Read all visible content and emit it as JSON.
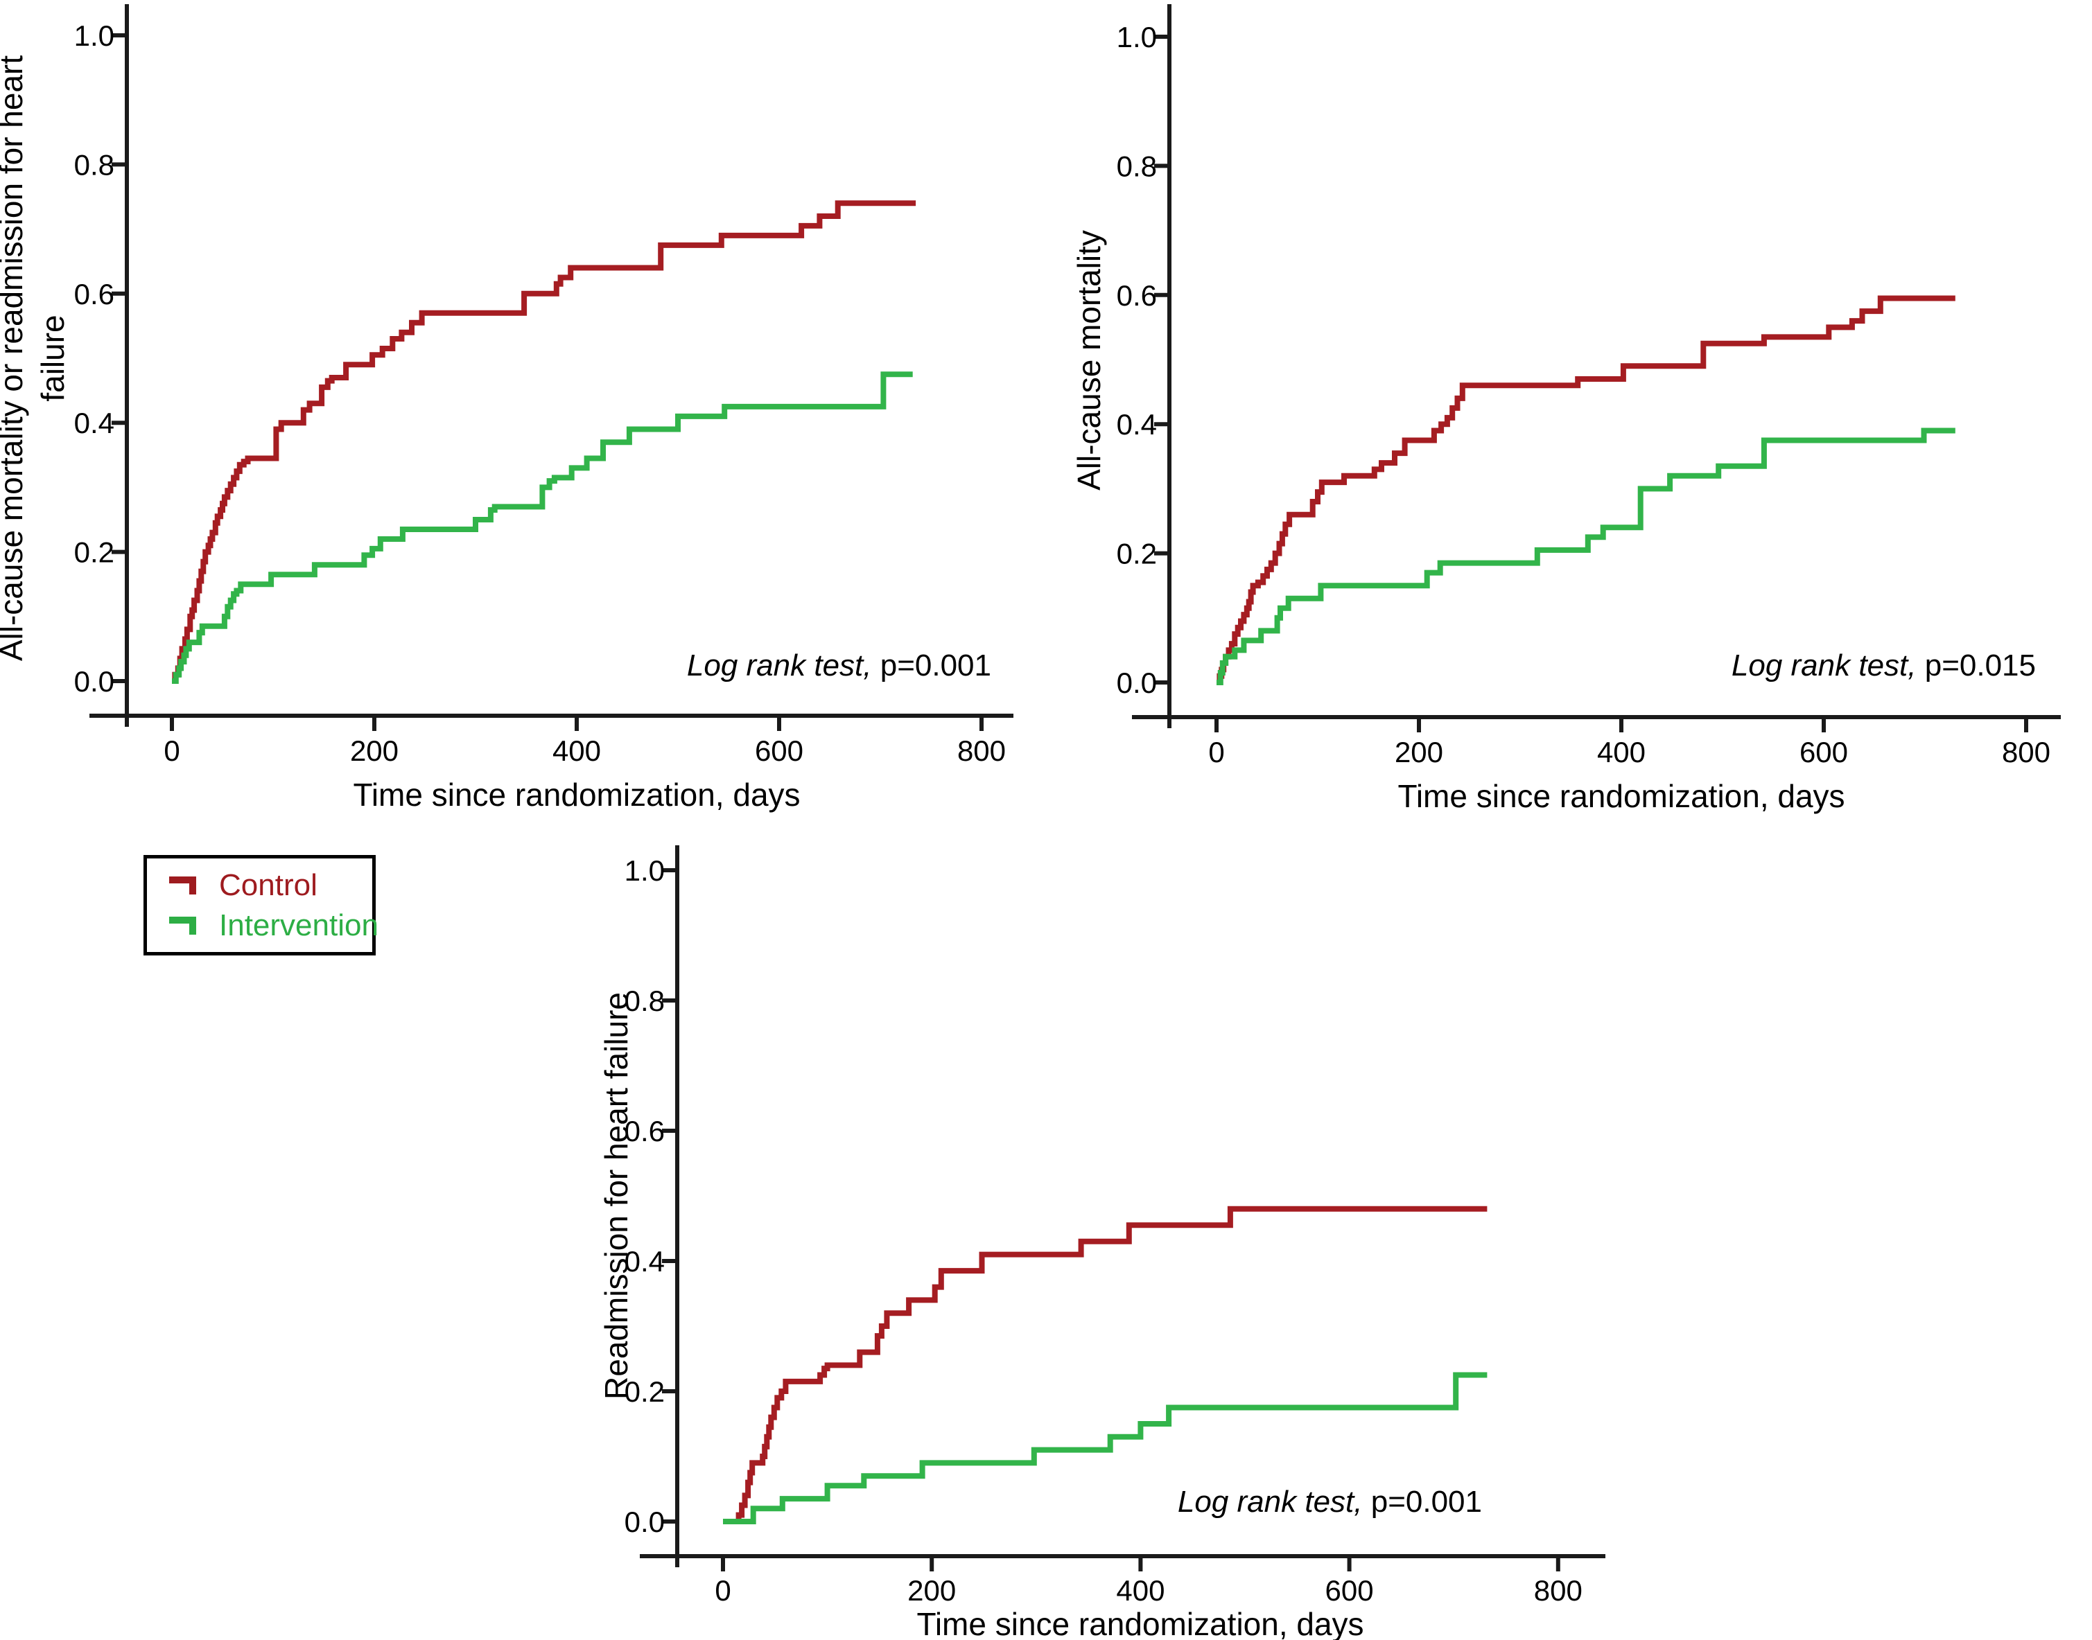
{
  "figure": {
    "background": "#ffffff",
    "text_color": "#000000",
    "axis_color": "#1a1a1a"
  },
  "legend": {
    "position": "bottom-left",
    "border_color": "#000000",
    "items": [
      {
        "label": "Control",
        "color": "#9e1b1f",
        "glyph": "step-line-icon"
      },
      {
        "label": "Intervention",
        "color": "#2dae45",
        "glyph": "step-line-icon"
      }
    ]
  },
  "chart_data": [
    {
      "id": "a",
      "type": "line",
      "subtype": "kaplan-meier-cumulative-incidence-step",
      "title": "",
      "xlabel": "Time since randomization, days",
      "ylabel": "All-cause mortality or readmission for heart failure",
      "ylabel_lines": [
        "All-cause mortality or readmission for heart",
        "failure"
      ],
      "xlim": [
        0,
        800
      ],
      "ylim": [
        0.0,
        1.0
      ],
      "xticks": [
        0,
        200,
        400,
        600,
        800
      ],
      "xtick_labels": [
        "0",
        "200",
        "400",
        "600",
        "800"
      ],
      "yticks": [
        0.0,
        0.2,
        0.4,
        0.6,
        0.8,
        1.0
      ],
      "ytick_labels": [
        "0.0",
        "0.2",
        "0.4",
        "0.6",
        "0.8",
        "1.0"
      ],
      "grid": false,
      "annotation": {
        "italic": "Log rank test,",
        "regular": " p=0.001"
      },
      "series": [
        {
          "name": "Control",
          "color": "#a51d22",
          "points": [
            [
              0,
              0
            ],
            [
              3,
              0.01
            ],
            [
              6,
              0.02
            ],
            [
              8,
              0.035
            ],
            [
              10,
              0.05
            ],
            [
              13,
              0.065
            ],
            [
              15,
              0.08
            ],
            [
              18,
              0.1
            ],
            [
              20,
              0.11
            ],
            [
              22,
              0.125
            ],
            [
              25,
              0.14
            ],
            [
              27,
              0.155
            ],
            [
              29,
              0.17
            ],
            [
              31,
              0.185
            ],
            [
              33,
              0.2
            ],
            [
              36,
              0.21
            ],
            [
              38,
              0.22
            ],
            [
              40,
              0.23
            ],
            [
              43,
              0.245
            ],
            [
              45,
              0.255
            ],
            [
              48,
              0.265
            ],
            [
              50,
              0.275
            ],
            [
              52,
              0.285
            ],
            [
              55,
              0.295
            ],
            [
              58,
              0.305
            ],
            [
              61,
              0.315
            ],
            [
              64,
              0.325
            ],
            [
              67,
              0.335
            ],
            [
              71,
              0.34
            ],
            [
              75,
              0.345
            ],
            [
              103,
              0.39
            ],
            [
              108,
              0.4
            ],
            [
              130,
              0.42
            ],
            [
              136,
              0.43
            ],
            [
              148,
              0.455
            ],
            [
              154,
              0.465
            ],
            [
              158,
              0.47
            ],
            [
              172,
              0.49
            ],
            [
              198,
              0.505
            ],
            [
              208,
              0.515
            ],
            [
              218,
              0.53
            ],
            [
              227,
              0.54
            ],
            [
              237,
              0.555
            ],
            [
              247,
              0.57
            ],
            [
              348,
              0.6
            ],
            [
              380,
              0.615
            ],
            [
              384,
              0.625
            ],
            [
              394,
              0.64
            ],
            [
              483,
              0.675
            ],
            [
              543,
              0.69
            ],
            [
              622,
              0.705
            ],
            [
              640,
              0.72
            ],
            [
              658,
              0.74
            ],
            [
              735,
              0.74
            ]
          ]
        },
        {
          "name": "Intervention",
          "color": "#32b44a",
          "points": [
            [
              0,
              0
            ],
            [
              4,
              0.01
            ],
            [
              7,
              0.02
            ],
            [
              9,
              0.03
            ],
            [
              12,
              0.04
            ],
            [
              14,
              0.05
            ],
            [
              17,
              0.06
            ],
            [
              27,
              0.075
            ],
            [
              30,
              0.085
            ],
            [
              52,
              0.1
            ],
            [
              55,
              0.115
            ],
            [
              58,
              0.125
            ],
            [
              61,
              0.135
            ],
            [
              64,
              0.14
            ],
            [
              68,
              0.15
            ],
            [
              98,
              0.165
            ],
            [
              141,
              0.18
            ],
            [
              190,
              0.195
            ],
            [
              198,
              0.205
            ],
            [
              206,
              0.22
            ],
            [
              228,
              0.235
            ],
            [
              300,
              0.25
            ],
            [
              315,
              0.265
            ],
            [
              319,
              0.27
            ],
            [
              366,
              0.3
            ],
            [
              373,
              0.31
            ],
            [
              378,
              0.315
            ],
            [
              395,
              0.33
            ],
            [
              410,
              0.345
            ],
            [
              426,
              0.37
            ],
            [
              452,
              0.39
            ],
            [
              500,
              0.41
            ],
            [
              546,
              0.425
            ],
            [
              703,
              0.475
            ],
            [
              732,
              0.475
            ]
          ]
        }
      ]
    },
    {
      "id": "b",
      "type": "line",
      "subtype": "kaplan-meier-cumulative-incidence-step",
      "title": "",
      "xlabel": "Time since randomization, days",
      "ylabel": "All-cause mortality",
      "ylabel_lines": [
        "All-cause mortality"
      ],
      "xlim": [
        0,
        800
      ],
      "ylim": [
        0.0,
        1.0
      ],
      "xticks": [
        0,
        200,
        400,
        600,
        800
      ],
      "xtick_labels": [
        "0",
        "200",
        "400",
        "600",
        "800"
      ],
      "yticks": [
        0.0,
        0.2,
        0.4,
        0.6,
        0.8,
        1.0
      ],
      "ytick_labels": [
        "0.0",
        "0.2",
        "0.4",
        "0.6",
        "0.8",
        "1.0"
      ],
      "grid": false,
      "annotation": {
        "italic": "Log rank test,",
        "regular": " p=0.015"
      },
      "series": [
        {
          "name": "Control",
          "color": "#a51d22",
          "points": [
            [
              0,
              0
            ],
            [
              3,
              0.01
            ],
            [
              5,
              0.02
            ],
            [
              7,
              0.03
            ],
            [
              9,
              0.04
            ],
            [
              12,
              0.05
            ],
            [
              15,
              0.06
            ],
            [
              18,
              0.075
            ],
            [
              21,
              0.085
            ],
            [
              24,
              0.095
            ],
            [
              27,
              0.105
            ],
            [
              30,
              0.115
            ],
            [
              32,
              0.125
            ],
            [
              34,
              0.14
            ],
            [
              36,
              0.15
            ],
            [
              41,
              0.155
            ],
            [
              46,
              0.165
            ],
            [
              50,
              0.175
            ],
            [
              54,
              0.185
            ],
            [
              58,
              0.2
            ],
            [
              62,
              0.215
            ],
            [
              65,
              0.23
            ],
            [
              68,
              0.245
            ],
            [
              72,
              0.26
            ],
            [
              95,
              0.28
            ],
            [
              100,
              0.295
            ],
            [
              104,
              0.31
            ],
            [
              126,
              0.32
            ],
            [
              156,
              0.33
            ],
            [
              163,
              0.34
            ],
            [
              176,
              0.355
            ],
            [
              186,
              0.375
            ],
            [
              215,
              0.39
            ],
            [
              222,
              0.4
            ],
            [
              228,
              0.41
            ],
            [
              233,
              0.425
            ],
            [
              238,
              0.44
            ],
            [
              243,
              0.46
            ],
            [
              357,
              0.47
            ],
            [
              402,
              0.49
            ],
            [
              481,
              0.525
            ],
            [
              541,
              0.535
            ],
            [
              605,
              0.55
            ],
            [
              628,
              0.56
            ],
            [
              638,
              0.575
            ],
            [
              656,
              0.595
            ],
            [
              730,
              0.595
            ]
          ]
        },
        {
          "name": "Intervention",
          "color": "#32b44a",
          "points": [
            [
              0,
              0
            ],
            [
              4,
              0.015
            ],
            [
              6,
              0.03
            ],
            [
              9,
              0.04
            ],
            [
              18,
              0.05
            ],
            [
              27,
              0.065
            ],
            [
              44,
              0.08
            ],
            [
              60,
              0.1
            ],
            [
              63,
              0.115
            ],
            [
              71,
              0.13
            ],
            [
              103,
              0.15
            ],
            [
              208,
              0.17
            ],
            [
              221,
              0.185
            ],
            [
              317,
              0.205
            ],
            [
              367,
              0.225
            ],
            [
              382,
              0.24
            ],
            [
              419,
              0.3
            ],
            [
              448,
              0.32
            ],
            [
              496,
              0.335
            ],
            [
              541,
              0.375
            ],
            [
              699,
              0.39
            ],
            [
              730,
              0.39
            ]
          ]
        }
      ]
    },
    {
      "id": "c",
      "type": "line",
      "subtype": "kaplan-meier-cumulative-incidence-step",
      "title": "",
      "xlabel": "Time since randomization, days",
      "ylabel": "Readmission for heart failure",
      "ylabel_lines": [
        "Readmission for heart failure"
      ],
      "xlim": [
        0,
        800
      ],
      "ylim": [
        0.0,
        1.0
      ],
      "xticks": [
        0,
        200,
        400,
        600,
        800
      ],
      "xtick_labels": [
        "0",
        "200",
        "400",
        "600",
        "800"
      ],
      "yticks": [
        0.0,
        0.2,
        0.4,
        0.6,
        0.8,
        1.0
      ],
      "ytick_labels": [
        "0.0",
        "0.2",
        "0.4",
        "0.6",
        "0.8",
        "1.0"
      ],
      "grid": false,
      "annotation": {
        "italic": "Log rank test,",
        "regular": " p=0.001"
      },
      "series": [
        {
          "name": "Control",
          "color": "#a51d22",
          "points": [
            [
              10,
              0
            ],
            [
              15,
              0.01
            ],
            [
              18,
              0.025
            ],
            [
              21,
              0.04
            ],
            [
              24,
              0.06
            ],
            [
              26,
              0.075
            ],
            [
              28,
              0.09
            ],
            [
              38,
              0.1
            ],
            [
              40,
              0.115
            ],
            [
              42,
              0.13
            ],
            [
              44,
              0.145
            ],
            [
              46,
              0.16
            ],
            [
              49,
              0.175
            ],
            [
              52,
              0.19
            ],
            [
              56,
              0.2
            ],
            [
              60,
              0.215
            ],
            [
              93,
              0.225
            ],
            [
              97,
              0.235
            ],
            [
              100,
              0.24
            ],
            [
              131,
              0.26
            ],
            [
              148,
              0.285
            ],
            [
              152,
              0.3
            ],
            [
              157,
              0.32
            ],
            [
              178,
              0.34
            ],
            [
              203,
              0.36
            ],
            [
              209,
              0.385
            ],
            [
              248,
              0.41
            ],
            [
              343,
              0.43
            ],
            [
              389,
              0.455
            ],
            [
              486,
              0.48
            ],
            [
              732,
              0.48
            ]
          ]
        },
        {
          "name": "Intervention",
          "color": "#32b44a",
          "points": [
            [
              0,
              0
            ],
            [
              29,
              0.02
            ],
            [
              57,
              0.035
            ],
            [
              100,
              0.055
            ],
            [
              135,
              0.07
            ],
            [
              191,
              0.09
            ],
            [
              298,
              0.11
            ],
            [
              371,
              0.13
            ],
            [
              400,
              0.15
            ],
            [
              427,
              0.175
            ],
            [
              702,
              0.225
            ],
            [
              732,
              0.225
            ]
          ]
        }
      ]
    }
  ]
}
